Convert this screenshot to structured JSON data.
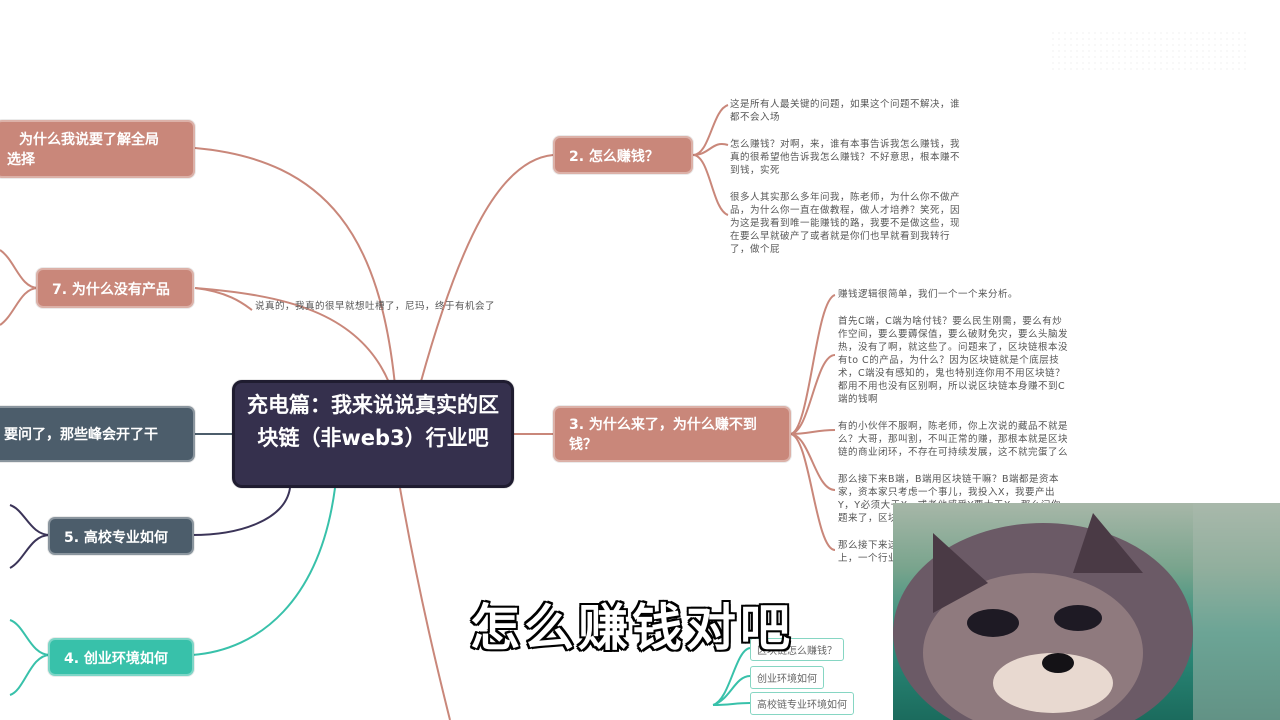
{
  "root": {
    "title": "充电篇：我来说说真实的区块链（非web3）行业吧"
  },
  "branches": {
    "b8": "为什么我说要了解全局",
    "b8_line2": "选择",
    "b7": "7. 为什么没有产品",
    "b6": "要问了，那些峰会开了干",
    "b5": "5. 高校专业如何",
    "b4": "4. 创业环境如何",
    "b2": "2. 怎么赚钱？",
    "b3": "3. 为什么来了，为什么赚不到钱？"
  },
  "notes": {
    "n7": "说真的，我真的很早就想吐槽了，尼玛，终于有机会了",
    "n2": [
      "这是所有人最关键的问题，如果这个问题不解决，谁都不会入场",
      "怎么赚钱？对啊，来，谁有本事告诉我怎么赚钱，我真的很希望他告诉我怎么赚钱？不好意思，根本赚不到钱，实死",
      "很多人其实那么多年问我，陈老师，为什么你不做产品，为什么你一直在做教程，做人才培养？笑死，因为这是我看到唯一能赚钱的路，我要不是做这些，现在要么早就破产了或者就是你们也早就看到我转行了，做个屁"
    ],
    "n3": [
      "赚钱逻辑很简单，我们一个一个来分析。",
      "首先C端，C端为啥付钱？要么民生刚需，要么有炒作空间，要么要薅保值，要么破财免灾，要么头脑发热，没有了啊，就这些了。问题来了，区块链根本没有to C的产品，为什么？因为区块链就是个底层技术，C端没有感知的，鬼也特别连你用不用区块链？都用不用也没有区别啊，所以说区块链本身赚不到C端的钱啊",
      "有的小伙伴不服啊，陈老师，你上次说的藏品不就是么？大哥，那叫割，不叫正常的赚，那根本就是区块链的商业闭环，不存在可持续发展，这不就完蛋了么",
      "那么接下来B端，B端用区块链干嘛？B端都是资本家，资本家只考虑一个事儿，我投入X，我要产出Y，Y必须大于X，或者他感受Y要大于X。那么问你题来了，区块链业根本没有人",
      "那么接下来这向的钱？现在目可以申报，如果就看不上，一个行业"
    ]
  },
  "small_boxes": [
    "区块链怎么赚钱？",
    "创业环境如何",
    "高校链专业环境如何"
  ],
  "subtitle": "怎么赚钱对吧",
  "colors": {
    "brown": "#c9877a",
    "slate": "#4c5d6b",
    "teal": "#38c1aa",
    "root": "#35304d"
  }
}
